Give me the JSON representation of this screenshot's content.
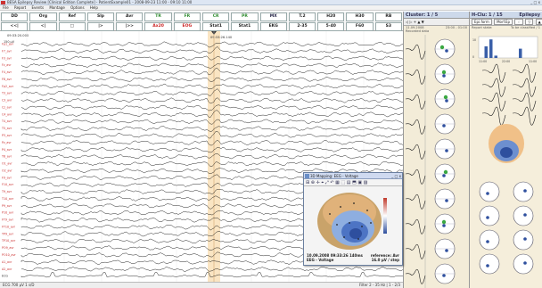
{
  "window": {
    "title": "BESA Epilepsy Review  [Clinical Edition Complete] - PatientExample01 - 2008-09-23 11:00 - 09:10 11:00",
    "controls": "_ □ x"
  },
  "menu": [
    "File",
    "Report",
    "Events",
    "Montage",
    "Options",
    "Help"
  ],
  "toolbar": {
    "row1": [
      {
        "label": "DD",
        "color": "dk"
      },
      {
        "label": "Org",
        "color": "dk"
      },
      {
        "label": "Ref",
        "color": "dk"
      },
      {
        "label": "Slp",
        "color": "dk"
      },
      {
        "label": "Avr",
        "color": "dk"
      },
      {
        "label": "TR",
        "color": "g"
      },
      {
        "label": "FR",
        "color": "g"
      },
      {
        "label": "CR",
        "color": "g"
      },
      {
        "label": "PR",
        "color": "g"
      },
      {
        "label": "MX",
        "color": "bl"
      },
      {
        "label": "T.2",
        "color": "dk"
      },
      {
        "label": "H20",
        "color": "dk"
      },
      {
        "label": "H30",
        "color": "dk"
      },
      {
        "label": "RB",
        "color": "dk"
      }
    ],
    "row2": [
      {
        "label": "<<|",
        "color": "dk"
      },
      {
        "label": "<|",
        "color": "dk"
      },
      {
        "label": "□",
        "color": "dk"
      },
      {
        "label": "|>",
        "color": "dk"
      },
      {
        "label": "|>>",
        "color": "dk"
      },
      {
        "label": "Ax20",
        "color": "r"
      },
      {
        "label": "EOG",
        "color": "r"
      },
      {
        "label": "Stat1",
        "color": "dk"
      },
      {
        "label": "Stat1",
        "color": "dk"
      },
      {
        "label": "EKG",
        "color": "dk"
      },
      {
        "label": "2-35",
        "color": "dk"
      },
      {
        "label": "5-40",
        "color": "dk"
      },
      {
        "label": "F60",
        "color": "dk"
      },
      {
        "label": "S3",
        "color": "dk"
      }
    ]
  },
  "timeline": {
    "left_time": "09:33:20.000",
    "marker_time": "09:33:26.140",
    "scale": "150 µV"
  },
  "channels": [
    "Fp1_avr",
    "F7_avr",
    "F3_avr",
    "Fz_avr",
    "F4_avr",
    "F8_avr",
    "Fp2_avr",
    "T3_avr",
    "C3_avr",
    "Cz_avr",
    "C4_avr",
    "T4_avr",
    "T5_avr",
    "P3_avr",
    "Pz_avr",
    "P4_avr",
    "T6_avr",
    "O1_avr",
    "O2_avr",
    "F9_avr",
    "F10_avr",
    "T9_avr",
    "T10_avr",
    "P9_avr",
    "P10_avr",
    "FT9_avr",
    "FT10_avr",
    "TP9_avr",
    "TP10_avr",
    "PO9_avr",
    "PO10_avr",
    "A1_avr",
    "A2_avr",
    "ECG"
  ],
  "statusbar": {
    "left": "ECG 700 µV   1 s/D",
    "right": "Filter 2 - 35 Hz  | 1 - 2/3"
  },
  "cluster_panel": {
    "title": "Cluster: 1 / 5",
    "controls": "◁   ▷   + ▲ ▼",
    "info_left": "11.09.2008",
    "info_left2": "Recorded data",
    "info_right": "23:00 - 01:00"
  },
  "hclu_panel": {
    "title": "H-Clu: 1 / 15",
    "title_right": "Epilepsy",
    "tabs": [
      "Epi.form",
      "Morf.Ep",
      "♢",
      "▽",
      "▲",
      "▼"
    ],
    "info_left": "Report state:",
    "info_right": "To be classified / 1",
    "hist_label_left": "11:00",
    "hist_label_mid": "22:00",
    "hist_label_right": "11:00",
    "hist_values": [
      0,
      5,
      8,
      1,
      0,
      0,
      0,
      0,
      4,
      0,
      0,
      0
    ],
    "hist_y_top": "10",
    "hist_y_bottom": "0"
  },
  "map_window": {
    "title": "3D Mapping: EEG - Voltage",
    "controls": "_ □ x",
    "tools": "⊞ ⊕ ✛ ⌖ ⤢ ↶ ▦ ⬚ ▤ ⬒ ▣ ▨",
    "caption_left1": "10.09.2008 09:33:26 140ms",
    "caption_left2": "EEG - Voltage",
    "caption_right1": "reference: Avr",
    "caption_right2": "16.0 µV / step"
  },
  "colors": {
    "highlight": "#f5c67a",
    "marker": "#d48a2c",
    "map_red": "#c0392b",
    "map_blue": "#2e4f9e"
  }
}
